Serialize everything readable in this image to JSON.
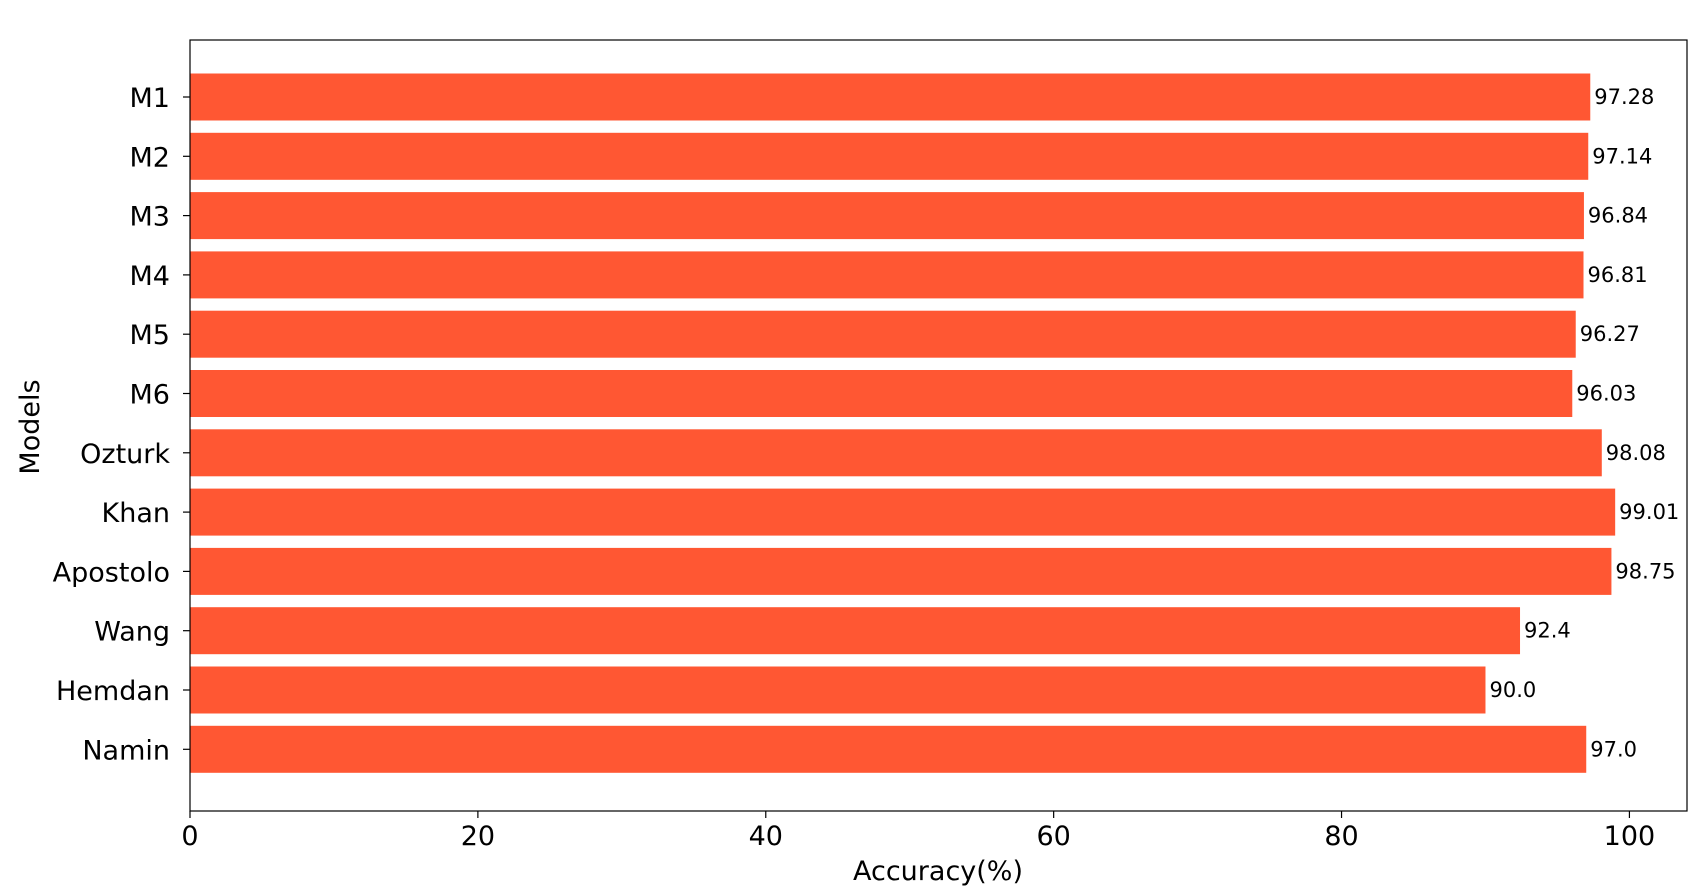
{
  "chart_data": {
    "type": "bar",
    "orientation": "horizontal",
    "categories": [
      "M1",
      "M2",
      "M3",
      "M4",
      "M5",
      "M6",
      "Ozturk",
      "Khan",
      "Apostolo",
      "Wang",
      "Hemdan",
      "Namin"
    ],
    "values": [
      97.28,
      97.14,
      96.84,
      96.81,
      96.27,
      96.03,
      98.08,
      99.01,
      98.75,
      92.4,
      90.0,
      97.0
    ],
    "value_labels": [
      "97.28",
      "97.14",
      "96.84",
      "96.81",
      "96.27",
      "96.03",
      "98.08",
      "99.01",
      "98.75",
      "92.4",
      "90.0",
      "97.0"
    ],
    "title": "",
    "xlabel": "Accuracy(%)",
    "ylabel": "Models",
    "xlim": [
      0,
      104
    ],
    "xticks": [
      0,
      20,
      40,
      60,
      80,
      100
    ],
    "grid": false,
    "bar_color": "#ff5733"
  }
}
